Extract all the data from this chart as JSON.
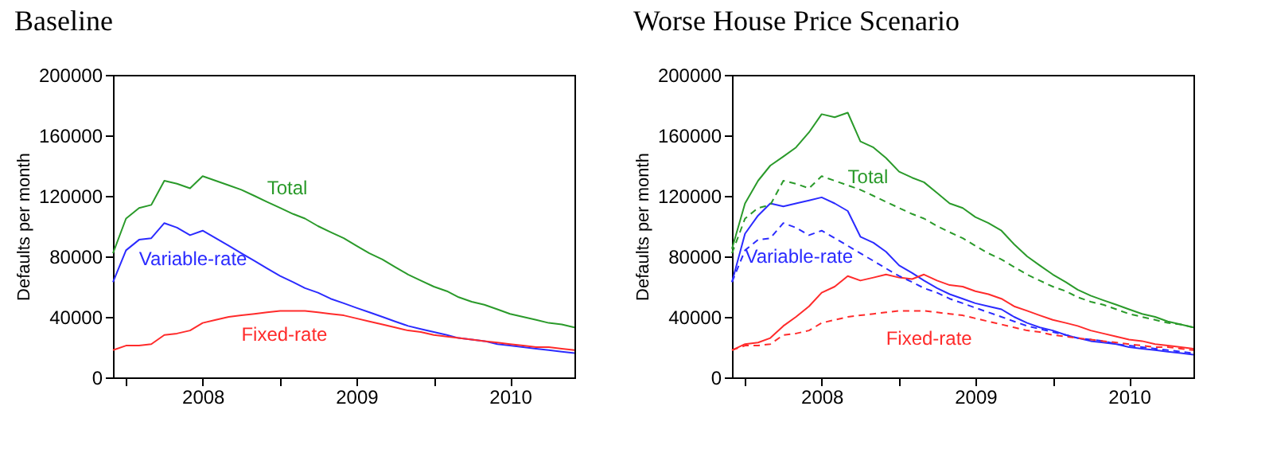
{
  "chart_data": [
    {
      "type": "line",
      "title": "Baseline",
      "ylabel": "Defaults per month",
      "x": [
        "2007-12",
        "2008-01",
        "2008-02",
        "2008-03",
        "2008-04",
        "2008-05",
        "2008-06",
        "2008-07",
        "2008-08",
        "2008-09",
        "2008-10",
        "2008-11",
        "2008-12",
        "2009-01",
        "2009-02",
        "2009-03",
        "2009-04",
        "2009-05",
        "2009-06",
        "2009-07",
        "2009-08",
        "2009-09",
        "2009-10",
        "2009-11",
        "2009-12",
        "2010-01",
        "2010-02",
        "2010-03",
        "2010-04",
        "2010-05",
        "2010-06",
        "2010-07",
        "2010-08",
        "2010-09",
        "2010-10",
        "2010-11",
        "2010-12"
      ],
      "xlim": [
        "2007-12",
        "2010-12"
      ],
      "xticks": [
        {
          "value": "2008-01",
          "label": null
        },
        {
          "value": "2008-07",
          "label": "2008"
        },
        {
          "value": "2009-01",
          "label": null
        },
        {
          "value": "2009-07",
          "label": "2009"
        },
        {
          "value": "2010-01",
          "label": null
        },
        {
          "value": "2010-07",
          "label": "2010"
        }
      ],
      "ylim": [
        0,
        200000
      ],
      "yticks": [
        0,
        40000,
        80000,
        120000,
        160000,
        200000
      ],
      "grid": false,
      "series": [
        {
          "name": "Total",
          "color": "#2a9a2a",
          "values": [
            82000,
            105000,
            112000,
            114000,
            130000,
            128000,
            125000,
            133000,
            130000,
            127000,
            124000,
            120000,
            116000,
            112000,
            108000,
            105000,
            100000,
            96000,
            92000,
            87000,
            82000,
            78000,
            73000,
            68000,
            64000,
            60000,
            57000,
            53000,
            50000,
            48000,
            45000,
            42000,
            40000,
            38000,
            36000,
            35000,
            33000
          ]
        },
        {
          "name": "Variable-rate",
          "color": "#2b2bff",
          "values": [
            63000,
            84000,
            91000,
            92000,
            102000,
            99000,
            94000,
            97000,
            92000,
            87000,
            82000,
            77000,
            72000,
            67000,
            63000,
            59000,
            56000,
            52000,
            49000,
            46000,
            43000,
            40000,
            37000,
            34000,
            32000,
            30000,
            28000,
            26000,
            25000,
            24000,
            22000,
            21000,
            20000,
            19000,
            18000,
            17000,
            16000
          ]
        },
        {
          "name": "Fixed-rate",
          "color": "#ff2b2b",
          "values": [
            18000,
            21000,
            21000,
            22000,
            28000,
            29000,
            31000,
            36000,
            38000,
            40000,
            41000,
            42000,
            43000,
            44000,
            44000,
            44000,
            43000,
            42000,
            41000,
            39000,
            37000,
            35000,
            33000,
            31000,
            30000,
            28000,
            27000,
            26000,
            25000,
            24000,
            23000,
            22000,
            21000,
            20000,
            20000,
            19000,
            18000
          ]
        }
      ]
    },
    {
      "type": "line",
      "title": "Worse House Price Scenario",
      "ylabel": "Defaults per month",
      "x": [
        "2007-12",
        "2008-01",
        "2008-02",
        "2008-03",
        "2008-04",
        "2008-05",
        "2008-06",
        "2008-07",
        "2008-08",
        "2008-09",
        "2008-10",
        "2008-11",
        "2008-12",
        "2009-01",
        "2009-02",
        "2009-03",
        "2009-04",
        "2009-05",
        "2009-06",
        "2009-07",
        "2009-08",
        "2009-09",
        "2009-10",
        "2009-11",
        "2009-12",
        "2010-01",
        "2010-02",
        "2010-03",
        "2010-04",
        "2010-05",
        "2010-06",
        "2010-07",
        "2010-08",
        "2010-09",
        "2010-10",
        "2010-11",
        "2010-12"
      ],
      "xlim": [
        "2007-12",
        "2010-12"
      ],
      "xticks": [
        {
          "value": "2008-01",
          "label": null
        },
        {
          "value": "2008-07",
          "label": "2008"
        },
        {
          "value": "2009-01",
          "label": null
        },
        {
          "value": "2009-07",
          "label": "2009"
        },
        {
          "value": "2010-01",
          "label": null
        },
        {
          "value": "2010-07",
          "label": "2010"
        }
      ],
      "ylim": [
        0,
        200000
      ],
      "yticks": [
        0,
        40000,
        80000,
        120000,
        160000,
        200000
      ],
      "grid": false,
      "series": [
        {
          "name": "Total",
          "color": "#2a9a2a",
          "values": [
            85000,
            115000,
            130000,
            140000,
            146000,
            152000,
            162000,
            174000,
            172000,
            175000,
            156000,
            152000,
            145000,
            136000,
            132000,
            129000,
            122000,
            115000,
            112000,
            106000,
            102000,
            97000,
            88000,
            80000,
            74000,
            68000,
            63000,
            58000,
            54000,
            51000,
            48000,
            45000,
            42000,
            40000,
            37000,
            35000,
            33000
          ]
        },
        {
          "name": "Variable-rate",
          "color": "#2b2bff",
          "values": [
            63000,
            95000,
            107000,
            115000,
            113000,
            115000,
            117000,
            119000,
            115000,
            110000,
            93000,
            89000,
            83000,
            74000,
            69000,
            64000,
            59000,
            55000,
            52000,
            49000,
            47000,
            45000,
            40000,
            36000,
            33000,
            31000,
            28000,
            26000,
            24000,
            23000,
            22000,
            20000,
            19000,
            18000,
            17000,
            16000,
            15000
          ]
        },
        {
          "name": "Fixed-rate",
          "color": "#ff2b2b",
          "values": [
            18000,
            22000,
            23000,
            26000,
            34000,
            40000,
            47000,
            56000,
            60000,
            67000,
            64000,
            66000,
            68000,
            66000,
            65000,
            68000,
            64000,
            61000,
            60000,
            57000,
            55000,
            52000,
            47000,
            44000,
            41000,
            38000,
            36000,
            34000,
            31000,
            29000,
            27000,
            25000,
            24000,
            22000,
            21000,
            20000,
            19000
          ]
        },
        {
          "color": "#2a9a2a",
          "line_style": "dashed",
          "values": [
            82000,
            105000,
            112000,
            114000,
            130000,
            128000,
            125000,
            133000,
            130000,
            127000,
            124000,
            120000,
            116000,
            112000,
            108000,
            105000,
            100000,
            96000,
            92000,
            87000,
            82000,
            78000,
            73000,
            68000,
            64000,
            60000,
            57000,
            53000,
            50000,
            48000,
            45000,
            42000,
            40000,
            38000,
            36000,
            35000,
            33000
          ]
        },
        {
          "color": "#2b2bff",
          "line_style": "dashed",
          "values": [
            63000,
            84000,
            91000,
            92000,
            102000,
            99000,
            94000,
            97000,
            92000,
            87000,
            82000,
            77000,
            72000,
            67000,
            63000,
            59000,
            56000,
            52000,
            49000,
            46000,
            43000,
            40000,
            37000,
            34000,
            32000,
            30000,
            28000,
            26000,
            25000,
            24000,
            22000,
            21000,
            20000,
            19000,
            18000,
            17000,
            16000
          ]
        },
        {
          "color": "#ff2b2b",
          "line_style": "dashed",
          "values": [
            18000,
            21000,
            21000,
            22000,
            28000,
            29000,
            31000,
            36000,
            38000,
            40000,
            41000,
            42000,
            43000,
            44000,
            44000,
            44000,
            43000,
            42000,
            41000,
            39000,
            37000,
            35000,
            33000,
            31000,
            30000,
            28000,
            27000,
            26000,
            25000,
            24000,
            23000,
            22000,
            21000,
            20000,
            20000,
            19000,
            18000
          ]
        }
      ]
    }
  ]
}
